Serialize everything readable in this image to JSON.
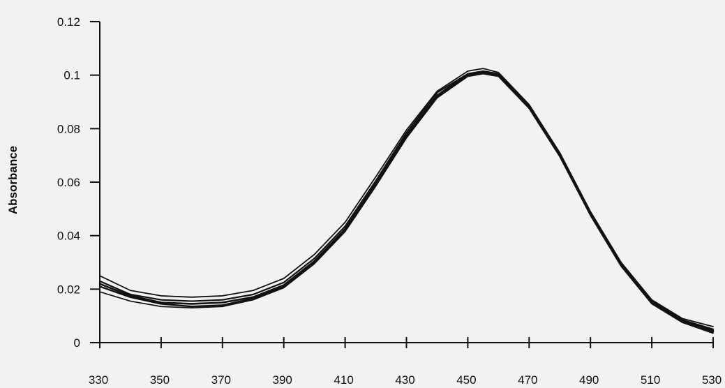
{
  "chart_data": {
    "type": "line",
    "title": "",
    "xlabel": "",
    "ylabel": "Absorbance",
    "xlim": [
      330,
      530
    ],
    "ylim": [
      0,
      0.12
    ],
    "x_ticks": [
      "330",
      "350",
      "370",
      "390",
      "410",
      "430",
      "450",
      "470",
      "490",
      "510",
      "530"
    ],
    "y_ticks": [
      "0",
      "0.02",
      "0.04",
      "0.06",
      "0.08",
      "0.1",
      "0.12"
    ],
    "grid": false,
    "legend": "none",
    "line_color": "#111111",
    "series": [
      {
        "x": [
          330,
          340,
          350,
          360,
          370,
          380,
          390,
          400,
          410,
          420,
          430,
          440,
          450,
          455,
          460,
          470,
          480,
          490,
          500,
          510,
          520,
          530
        ],
        "values": [
          0.021,
          0.017,
          0.0145,
          0.0135,
          0.014,
          0.0165,
          0.021,
          0.03,
          0.042,
          0.059,
          0.077,
          0.092,
          0.1,
          0.101,
          0.1,
          0.088,
          0.07,
          0.048,
          0.029,
          0.015,
          0.008,
          0.004
        ]
      },
      {
        "x": [
          330,
          340,
          350,
          360,
          370,
          380,
          390,
          400,
          410,
          420,
          430,
          440,
          450,
          455,
          460,
          470,
          480,
          490,
          500,
          510,
          520,
          530
        ],
        "values": [
          0.023,
          0.018,
          0.016,
          0.0155,
          0.016,
          0.018,
          0.0225,
          0.0315,
          0.0435,
          0.0605,
          0.0785,
          0.0935,
          0.1005,
          0.1015,
          0.1005,
          0.0885,
          0.0705,
          0.0485,
          0.0295,
          0.0155,
          0.0085,
          0.005
        ]
      },
      {
        "x": [
          330,
          340,
          350,
          360,
          370,
          380,
          390,
          400,
          410,
          420,
          430,
          440,
          450,
          455,
          460,
          470,
          480,
          490,
          500,
          510,
          520,
          530
        ],
        "values": [
          0.025,
          0.0195,
          0.0175,
          0.017,
          0.0175,
          0.0195,
          0.024,
          0.033,
          0.045,
          0.062,
          0.0795,
          0.094,
          0.1015,
          0.1025,
          0.101,
          0.089,
          0.071,
          0.049,
          0.03,
          0.016,
          0.009,
          0.006
        ]
      },
      {
        "x": [
          330,
          340,
          350,
          360,
          370,
          380,
          390,
          400,
          410,
          420,
          430,
          440,
          450,
          455,
          460,
          470,
          480,
          490,
          500,
          510,
          520,
          530
        ],
        "values": [
          0.019,
          0.0155,
          0.0135,
          0.013,
          0.0135,
          0.016,
          0.0205,
          0.0295,
          0.0415,
          0.0585,
          0.0765,
          0.0915,
          0.0995,
          0.1005,
          0.0995,
          0.0875,
          0.0695,
          0.0475,
          0.0285,
          0.0145,
          0.0075,
          0.0035
        ]
      },
      {
        "x": [
          330,
          340,
          350,
          360,
          370,
          380,
          390,
          400,
          410,
          420,
          430,
          440,
          450,
          455,
          460,
          470,
          480,
          490,
          500,
          510,
          520,
          530
        ],
        "values": [
          0.022,
          0.0175,
          0.015,
          0.0145,
          0.015,
          0.017,
          0.0215,
          0.0305,
          0.0425,
          0.0595,
          0.0775,
          0.0925,
          0.1002,
          0.1012,
          0.1002,
          0.0882,
          0.0702,
          0.0482,
          0.0292,
          0.0152,
          0.0082,
          0.0045
        ]
      }
    ]
  }
}
